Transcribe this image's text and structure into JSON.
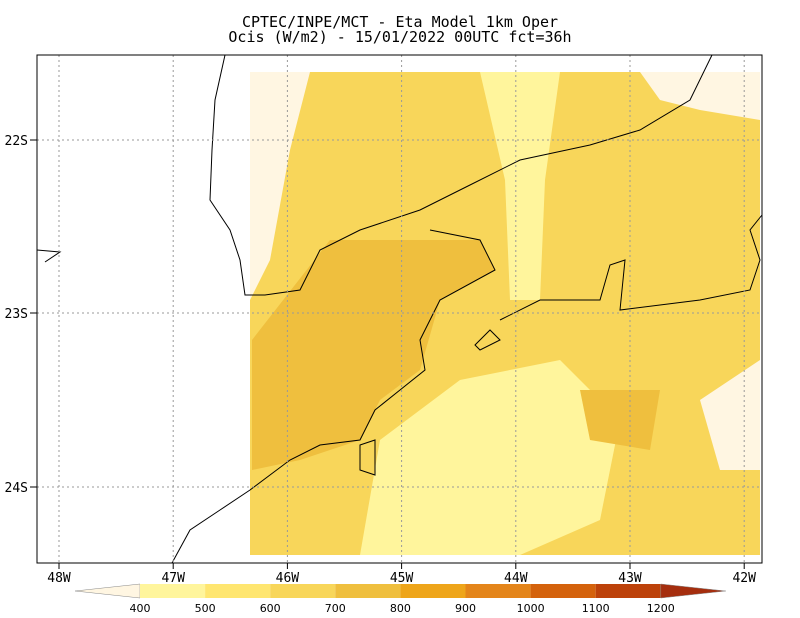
{
  "title": [
    "CPTEC/INPE/MCT -  Eta Model 1km Oper",
    "Ocis (W/m2) - 15/01/2022 00UTC fct=36h"
  ],
  "lat_labels": [
    "22S",
    "23S",
    "24S"
  ],
  "lon_labels": [
    "48W",
    "47W",
    "46W",
    "45W",
    "44W",
    "43W",
    "42W"
  ],
  "colorbar": {
    "levels": [
      400,
      500,
      600,
      700,
      800,
      900,
      1000,
      1100,
      1200
    ],
    "colors": [
      "#fff6e2",
      "#fff59c",
      "#ffe670",
      "#f8d65a",
      "#efbf3e",
      "#eea51a",
      "#e4851a",
      "#d4620c",
      "#bd420a",
      "#a52e0e"
    ]
  }
}
